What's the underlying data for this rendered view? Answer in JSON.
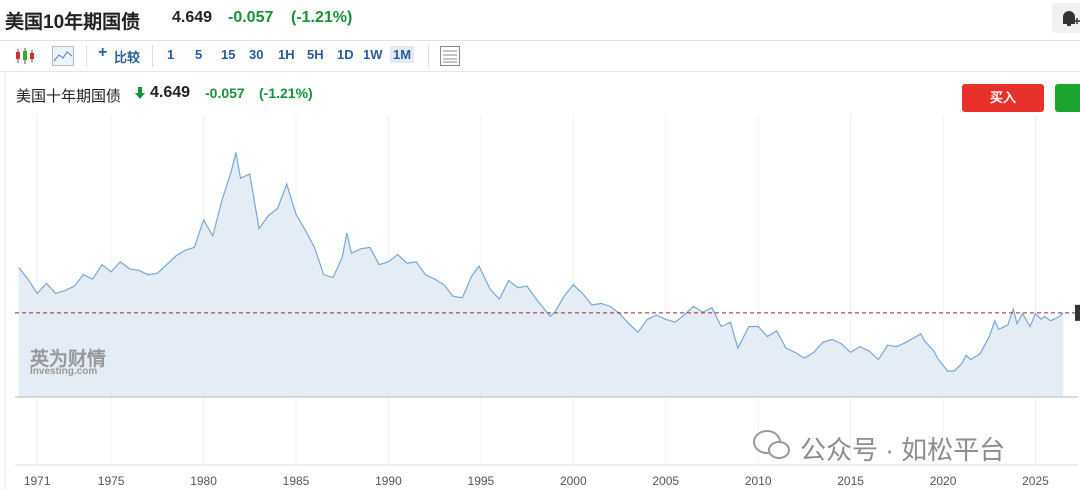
{
  "header": {
    "title": "美国10年期国债",
    "price": "4.649",
    "change": "-0.057",
    "change_pct": "(-1.21%)"
  },
  "toolbar": {
    "compare": "比较",
    "intervals": [
      "1",
      "5",
      "15",
      "30",
      "1H",
      "5H",
      "1D",
      "1W",
      "1M"
    ]
  },
  "legend": {
    "name": "美国十年期国债",
    "price": "4.649",
    "change": "-0.057",
    "change_pct": "(-1.21%)"
  },
  "buy_button": "买入",
  "watermarks": {
    "logo_cn": "英为财情",
    "logo_en": "Investing.com",
    "wechat": "公众号 · 如松平台"
  },
  "chart_data": {
    "type": "line",
    "x": [
      1970,
      1970.5,
      1971,
      1971.5,
      1972,
      1972.5,
      1973,
      1973.5,
      1974,
      1974.5,
      1975,
      1975.5,
      1976,
      1976.5,
      1977,
      1977.5,
      1978,
      1978.5,
      1979,
      1979.5,
      1980,
      1980.5,
      1981,
      1981.5,
      1981.75,
      1982,
      1982.5,
      1983,
      1983.5,
      1984,
      1984.5,
      1985,
      1985.5,
      1986,
      1986.5,
      1987,
      1987.5,
      1987.75,
      1988,
      1988.5,
      1989,
      1989.5,
      1990,
      1990.5,
      1991,
      1991.5,
      1992,
      1992.5,
      1993,
      1993.5,
      1994,
      1994.5,
      1994.9,
      1995.5,
      1996,
      1996.5,
      1997,
      1997.5,
      1998,
      1998.75,
      1999,
      1999.5,
      2000,
      2000.5,
      2001,
      2001.5,
      2002,
      2002.5,
      2003,
      2003.5,
      2004,
      2004.5,
      2005,
      2005.5,
      2006,
      2006.5,
      2007,
      2007.5,
      2008,
      2008.5,
      2008.9,
      2009.5,
      2010,
      2010.5,
      2011,
      2011.5,
      2012,
      2012.5,
      2013,
      2013.5,
      2014,
      2014.5,
      2015,
      2015.5,
      2016,
      2016.5,
      2017,
      2017.5,
      2018,
      2018.8,
      2019,
      2019.5,
      2019.7,
      2020.25,
      2020.6,
      2021,
      2021.25,
      2021.5,
      2022,
      2022.5,
      2022.8,
      2023,
      2023.5,
      2023.8,
      2024,
      2024.3,
      2024.7,
      2025,
      2025.3,
      2025.5,
      2025.8,
      2026,
      2026.3,
      2026.5
    ],
    "values": [
      7.8,
      7.0,
      6.0,
      6.7,
      6.0,
      6.2,
      6.5,
      7.3,
      7.0,
      8.0,
      7.5,
      8.2,
      7.7,
      7.6,
      7.3,
      7.4,
      8.0,
      8.6,
      9.0,
      9.2,
      11.1,
      10.0,
      12.5,
      14.5,
      15.8,
      14.0,
      14.3,
      10.5,
      11.4,
      11.9,
      13.6,
      11.5,
      10.4,
      9.2,
      7.3,
      7.1,
      8.5,
      10.2,
      8.8,
      9.1,
      9.2,
      8.0,
      8.2,
      8.7,
      8.1,
      8.2,
      7.3,
      7.0,
      6.6,
      5.8,
      5.7,
      7.2,
      7.9,
      6.3,
      5.6,
      6.9,
      6.4,
      6.5,
      5.6,
      4.4,
      4.7,
      5.8,
      6.6,
      6.0,
      5.2,
      5.3,
      5.1,
      4.6,
      3.9,
      3.3,
      4.2,
      4.5,
      4.2,
      4.0,
      4.5,
      5.1,
      4.7,
      5.0,
      3.7,
      4.0,
      2.2,
      3.7,
      3.7,
      3.0,
      3.4,
      2.2,
      1.9,
      1.5,
      1.9,
      2.6,
      2.8,
      2.5,
      1.9,
      2.3,
      2.0,
      1.4,
      2.4,
      2.3,
      2.6,
      3.2,
      2.7,
      2.0,
      1.5,
      0.6,
      0.6,
      1.1,
      1.7,
      1.4,
      1.8,
      3.0,
      4.1,
      3.5,
      3.8,
      4.9,
      3.9,
      4.6,
      3.7,
      4.6,
      4.2,
      4.4,
      4.1,
      4.2,
      4.4,
      4.649
    ],
    "color": "#7aa6d4",
    "fill": "#e4edf5",
    "reference_color": "#a3262e",
    "xlim": [
      1969.8,
      2027.3
    ],
    "ylim": [
      -1.2,
      18.4
    ],
    "xticks": [
      1971,
      1975,
      1980,
      1985,
      1990,
      1995,
      2000,
      2005,
      2010,
      2015,
      2020,
      2025
    ],
    "grid": true
  }
}
